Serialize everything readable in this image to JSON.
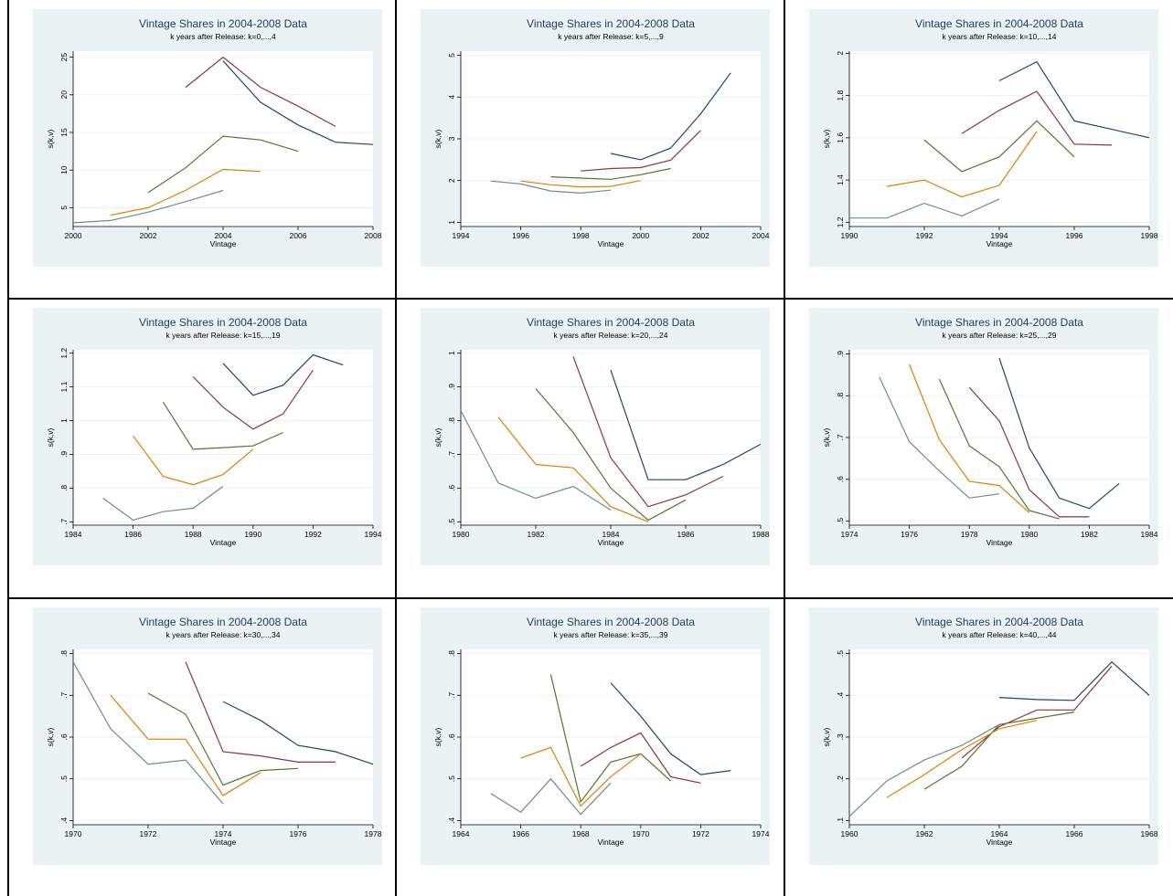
{
  "colors": {
    "panel_bg": "#eaf2f3",
    "plot_bg": "#ffffff",
    "title_color": "#1e3f66",
    "grid": "#eaf2f3",
    "series": [
      "#1a476f",
      "#90353b",
      "#55752f",
      "#e37e00",
      "#6e8e84"
    ]
  },
  "chart_data": [
    {
      "type": "line",
      "title": "Vintage Shares in 2004-2008 Data",
      "subtitle": "k years after Release:  k=0,...,4",
      "xlabel": "Vintage",
      "ylabel": "s(k,v)",
      "xlim": [
        2000,
        2008
      ],
      "ylim": [
        2.5,
        25.8
      ],
      "xticks": [
        2000,
        2002,
        2004,
        2006,
        2008
      ],
      "yticks": [
        5,
        10,
        15,
        20,
        25
      ],
      "series": [
        {
          "x": [
            2004,
            2005,
            2006,
            2007,
            2008
          ],
          "y": [
            24.5,
            19,
            16,
            13.7,
            13.4
          ]
        },
        {
          "x": [
            2003,
            2004,
            2005,
            2006,
            2007
          ],
          "y": [
            21,
            25,
            21,
            18.5,
            15.8
          ]
        },
        {
          "x": [
            2002,
            2003,
            2004,
            2005,
            2006
          ],
          "y": [
            7,
            10.3,
            14.5,
            14,
            12.5
          ]
        },
        {
          "x": [
            2001,
            2002,
            2003,
            2004,
            2005
          ],
          "y": [
            4,
            5,
            7.3,
            10.1,
            9.8
          ]
        },
        {
          "x": [
            2000,
            2001,
            2002,
            2003,
            2004
          ],
          "y": [
            3,
            3.3,
            4.4,
            5.8,
            7.3
          ]
        }
      ]
    },
    {
      "type": "line",
      "title": "Vintage Shares in 2004-2008 Data",
      "subtitle": "k years after Release:  k=5,...,9",
      "xlabel": "Vintage",
      "ylabel": "s(k,v)",
      "xlim": [
        1994,
        2004
      ],
      "ylim": [
        0.9,
        5.1
      ],
      "xticks": [
        1994,
        1996,
        1998,
        2000,
        2002,
        2004
      ],
      "yticks": [
        1,
        2,
        3,
        4,
        5
      ],
      "series": [
        {
          "x": [
            1999,
            2000,
            2001,
            2002,
            2003
          ],
          "y": [
            2.65,
            2.5,
            2.78,
            3.6,
            4.58
          ]
        },
        {
          "x": [
            1998,
            1999,
            2000,
            2001,
            2002
          ],
          "y": [
            2.23,
            2.29,
            2.31,
            2.49,
            3.2
          ]
        },
        {
          "x": [
            1997,
            1998,
            1999,
            2000,
            2001
          ],
          "y": [
            2.09,
            2.06,
            2.03,
            2.14,
            2.29
          ]
        },
        {
          "x": [
            1996,
            1997,
            1998,
            1999,
            2000
          ],
          "y": [
            1.99,
            1.9,
            1.85,
            1.86,
            2.0
          ]
        },
        {
          "x": [
            1995,
            1996,
            1997,
            1998,
            1999
          ],
          "y": [
            1.99,
            1.92,
            1.75,
            1.7,
            1.77
          ]
        }
      ]
    },
    {
      "type": "line",
      "title": "Vintage Shares in 2004-2008 Data",
      "subtitle": "k years after Release:  k=10,...,14",
      "xlabel": "Vintage",
      "ylabel": "s(k,v)",
      "xlim": [
        1990,
        1998
      ],
      "ylim": [
        1.18,
        2.01
      ],
      "xticks": [
        1990,
        1992,
        1994,
        1996,
        1998
      ],
      "yticks": [
        1.2,
        1.4,
        1.6,
        1.8,
        2
      ],
      "series": [
        {
          "x": [
            1994,
            1995,
            1996,
            1997,
            1998
          ],
          "y": [
            1.87,
            1.96,
            1.68,
            1.64,
            1.6
          ]
        },
        {
          "x": [
            1993,
            1994,
            1995,
            1996,
            1997
          ],
          "y": [
            1.62,
            1.73,
            1.82,
            1.57,
            1.565
          ]
        },
        {
          "x": [
            1992,
            1993,
            1994,
            1995,
            1996
          ],
          "y": [
            1.59,
            1.44,
            1.51,
            1.68,
            1.51
          ]
        },
        {
          "x": [
            1991,
            1992,
            1993,
            1994,
            1995
          ],
          "y": [
            1.37,
            1.4,
            1.32,
            1.375,
            1.63
          ]
        },
        {
          "x": [
            1990,
            1991,
            1992,
            1993,
            1994
          ],
          "y": [
            1.22,
            1.22,
            1.29,
            1.23,
            1.31
          ]
        }
      ]
    },
    {
      "type": "line",
      "title": "Vintage Shares in 2004-2008 Data",
      "subtitle": "k years after Release:  k=15,...,19",
      "xlabel": "Vintage",
      "ylabel": "s(k,v)",
      "xlim": [
        1984,
        1994
      ],
      "ylim": [
        0.69,
        1.21
      ],
      "xticks": [
        1984,
        1986,
        1988,
        1990,
        1992,
        1994
      ],
      "yticks": [
        0.7,
        0.8,
        0.9,
        1,
        1.1,
        1.2
      ],
      "ytick_labels": [
        ".7",
        ".8",
        ".9",
        "1",
        "1.1",
        "1.2"
      ],
      "series": [
        {
          "x": [
            1989,
            1990,
            1991,
            1992,
            1993
          ],
          "y": [
            1.17,
            1.075,
            1.105,
            1.195,
            1.165
          ]
        },
        {
          "x": [
            1988,
            1989,
            1990,
            1991,
            1992
          ],
          "y": [
            1.13,
            1.04,
            0.975,
            1.02,
            1.15
          ]
        },
        {
          "x": [
            1987,
            1988,
            1989,
            1990,
            1991
          ],
          "y": [
            1.055,
            0.915,
            0.92,
            0.925,
            0.965
          ]
        },
        {
          "x": [
            1986,
            1987,
            1988,
            1989,
            1990
          ],
          "y": [
            0.955,
            0.835,
            0.81,
            0.84,
            0.915
          ]
        },
        {
          "x": [
            1985,
            1986,
            1987,
            1988,
            1989
          ],
          "y": [
            0.77,
            0.705,
            0.73,
            0.74,
            0.805
          ]
        }
      ]
    },
    {
      "type": "line",
      "title": "Vintage Shares in 2004-2008 Data",
      "subtitle": "k years after Release:  k=20,...,24",
      "xlabel": "Vintage",
      "ylabel": "s(k,v)",
      "xlim": [
        1980,
        1988
      ],
      "ylim": [
        0.49,
        1.01
      ],
      "xticks": [
        1980,
        1982,
        1984,
        1986,
        1988
      ],
      "yticks": [
        0.5,
        0.6,
        0.7,
        0.8,
        0.9,
        1
      ],
      "ytick_labels": [
        ".5",
        ".6",
        ".7",
        ".8",
        ".9",
        "1"
      ],
      "series": [
        {
          "x": [
            1984,
            1985,
            1986,
            1987,
            1988
          ],
          "y": [
            0.95,
            0.625,
            0.625,
            0.67,
            0.73
          ]
        },
        {
          "x": [
            1983,
            1984,
            1985,
            1986,
            1987
          ],
          "y": [
            0.99,
            0.69,
            0.545,
            0.58,
            0.635
          ]
        },
        {
          "x": [
            1982,
            1983,
            1984,
            1985,
            1986
          ],
          "y": [
            0.895,
            0.765,
            0.6,
            0.505,
            0.565
          ]
        },
        {
          "x": [
            1981,
            1982,
            1983,
            1984,
            1985
          ],
          "y": [
            0.81,
            0.67,
            0.66,
            0.545,
            0.5
          ]
        },
        {
          "x": [
            1980,
            1981,
            1982,
            1983,
            1984
          ],
          "y": [
            0.83,
            0.615,
            0.57,
            0.605,
            0.535
          ]
        }
      ]
    },
    {
      "type": "line",
      "title": "Vintage Shares in 2004-2008 Data",
      "subtitle": "k years after Release:  k=25,...,29",
      "xlabel": "Vintage",
      "ylabel": "s(k,v)",
      "xlim": [
        1974,
        1984
      ],
      "ylim": [
        0.49,
        0.91
      ],
      "xticks": [
        1974,
        1976,
        1978,
        1980,
        1982,
        1984
      ],
      "yticks": [
        0.5,
        0.6,
        0.7,
        0.8,
        0.9
      ],
      "ytick_labels": [
        ".5",
        ".6",
        ".7",
        ".8",
        ".9"
      ],
      "series": [
        {
          "x": [
            1979,
            1980,
            1981,
            1982,
            1983
          ],
          "y": [
            0.89,
            0.675,
            0.555,
            0.53,
            0.59
          ]
        },
        {
          "x": [
            1978,
            1979,
            1980,
            1981,
            1982
          ],
          "y": [
            0.82,
            0.74,
            0.575,
            0.51,
            0.51
          ]
        },
        {
          "x": [
            1977,
            1978,
            1979,
            1980,
            1981
          ],
          "y": [
            0.84,
            0.68,
            0.63,
            0.525,
            0.505
          ]
        },
        {
          "x": [
            1976,
            1977,
            1978,
            1979,
            1980
          ],
          "y": [
            0.875,
            0.695,
            0.595,
            0.585,
            0.52
          ]
        },
        {
          "x": [
            1975,
            1976,
            1977,
            1978,
            1979
          ],
          "y": [
            0.845,
            0.69,
            0.62,
            0.555,
            0.565
          ]
        }
      ]
    },
    {
      "type": "line",
      "title": "Vintage Shares in 2004-2008 Data",
      "subtitle": "k years after Release:  k=30,...,34",
      "xlabel": "Vintage",
      "ylabel": "s(k,v)",
      "xlim": [
        1970,
        1978
      ],
      "ylim": [
        0.39,
        0.81
      ],
      "xticks": [
        1970,
        1972,
        1974,
        1976,
        1978
      ],
      "yticks": [
        0.4,
        0.5,
        0.6,
        0.7,
        0.8
      ],
      "ytick_labels": [
        ".4",
        ".5",
        ".6",
        ".7",
        ".8"
      ],
      "series": [
        {
          "x": [
            1974,
            1975,
            1976,
            1977,
            1978
          ],
          "y": [
            0.685,
            0.64,
            0.58,
            0.565,
            0.535
          ]
        },
        {
          "x": [
            1973,
            1974,
            1975,
            1976,
            1977
          ],
          "y": [
            0.78,
            0.565,
            0.555,
            0.54,
            0.54
          ]
        },
        {
          "x": [
            1972,
            1973,
            1974,
            1975,
            1976
          ],
          "y": [
            0.705,
            0.655,
            0.485,
            0.52,
            0.525
          ]
        },
        {
          "x": [
            1971,
            1972,
            1973,
            1974,
            1975
          ],
          "y": [
            0.7,
            0.595,
            0.595,
            0.46,
            0.515
          ]
        },
        {
          "x": [
            1970,
            1971,
            1972,
            1973,
            1974
          ],
          "y": [
            0.78,
            0.62,
            0.535,
            0.545,
            0.44
          ]
        }
      ]
    },
    {
      "type": "line",
      "title": "Vintage Shares in 2004-2008 Data",
      "subtitle": "k years after Release:  k=35,...,39",
      "xlabel": "Vintage",
      "ylabel": "s(k,v)",
      "xlim": [
        1964,
        1974
      ],
      "ylim": [
        0.39,
        0.81
      ],
      "xticks": [
        1964,
        1966,
        1968,
        1970,
        1972,
        1974
      ],
      "yticks": [
        0.4,
        0.5,
        0.6,
        0.7,
        0.8
      ],
      "ytick_labels": [
        ".4",
        ".5",
        ".6",
        ".7",
        ".8"
      ],
      "series": [
        {
          "x": [
            1969,
            1970,
            1971,
            1972,
            1973
          ],
          "y": [
            0.73,
            0.65,
            0.56,
            0.51,
            0.52
          ]
        },
        {
          "x": [
            1968,
            1969,
            1970,
            1971,
            1972
          ],
          "y": [
            0.53,
            0.575,
            0.61,
            0.505,
            0.49
          ]
        },
        {
          "x": [
            1967,
            1968,
            1969,
            1970,
            1971
          ],
          "y": [
            0.75,
            0.445,
            0.54,
            0.56,
            0.495
          ]
        },
        {
          "x": [
            1966,
            1967,
            1968,
            1969,
            1970
          ],
          "y": [
            0.55,
            0.575,
            0.435,
            0.505,
            0.56
          ]
        },
        {
          "x": [
            1965,
            1966,
            1967,
            1968,
            1969
          ],
          "y": [
            0.465,
            0.42,
            0.5,
            0.415,
            0.49
          ]
        }
      ]
    },
    {
      "type": "line",
      "title": "Vintage Shares in 2004-2008 Data",
      "subtitle": "k years after Release:  k=40,...,44",
      "xlabel": "Vintage",
      "ylabel": "s(k,v)",
      "xlim": [
        1960,
        1968
      ],
      "ylim": [
        0.09,
        0.51
      ],
      "xticks": [
        1960,
        1962,
        1964,
        1966,
        1968
      ],
      "yticks": [
        0.1,
        0.2,
        0.3,
        0.4,
        0.5
      ],
      "ytick_labels": [
        ".1",
        ".2",
        ".3",
        ".4",
        ".5"
      ],
      "series": [
        {
          "x": [
            1964,
            1965,
            1966,
            1967,
            1968
          ],
          "y": [
            0.395,
            0.39,
            0.388,
            0.48,
            0.4
          ]
        },
        {
          "x": [
            1963,
            1964,
            1965,
            1966,
            1967
          ],
          "y": [
            0.25,
            0.325,
            0.365,
            0.365,
            0.47
          ]
        },
        {
          "x": [
            1962,
            1963,
            1964,
            1965,
            1966
          ],
          "y": [
            0.175,
            0.23,
            0.33,
            0.345,
            0.36
          ]
        },
        {
          "x": [
            1961,
            1962,
            1963,
            1964,
            1965
          ],
          "y": [
            0.155,
            0.21,
            0.27,
            0.32,
            0.34
          ]
        },
        {
          "x": [
            1960,
            1961,
            1962,
            1963,
            1964
          ],
          "y": [
            0.11,
            0.195,
            0.245,
            0.28,
            0.33
          ]
        }
      ]
    }
  ]
}
